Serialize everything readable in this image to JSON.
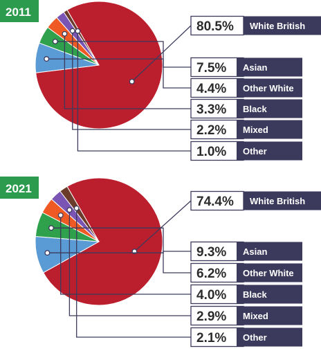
{
  "chart_data": [
    {
      "type": "pie",
      "title": "2011",
      "slices": [
        {
          "label": "White British",
          "value": 80.5,
          "display": "80.5%",
          "color": "#bb1f2e"
        },
        {
          "label": "Asian",
          "value": 7.5,
          "display": "7.5%",
          "color": "#5a9bd5"
        },
        {
          "label": "Other White",
          "value": 4.4,
          "display": "4.4%",
          "color": "#2fa04b"
        },
        {
          "label": "Black",
          "value": 3.3,
          "display": "3.3%",
          "color": "#ef5a24"
        },
        {
          "label": "Mixed",
          "value": 2.2,
          "display": "2.2%",
          "color": "#7a55b3"
        },
        {
          "label": "Other",
          "value": 1.0,
          "display": "1.0%",
          "color": "#6b3b2b"
        }
      ]
    },
    {
      "type": "pie",
      "title": "2021",
      "slices": [
        {
          "label": "White British",
          "value": 74.4,
          "display": "74.4%",
          "color": "#bb1f2e"
        },
        {
          "label": "Asian",
          "value": 9.3,
          "display": "9.3%",
          "color": "#5a9bd5"
        },
        {
          "label": "Other White",
          "value": 6.2,
          "display": "6.2%",
          "color": "#2fa04b"
        },
        {
          "label": "Black",
          "value": 4.0,
          "display": "4.0%",
          "color": "#ef5a24"
        },
        {
          "label": "Mixed",
          "value": 2.9,
          "display": "2.9%",
          "color": "#7a55b3"
        },
        {
          "label": "Other",
          "value": 2.1,
          "display": "2.1%",
          "color": "#6b3b2b"
        }
      ]
    }
  ],
  "colors": {
    "year_badge": "#2d9b4e",
    "label_box": "#3b3a5c",
    "value_box_border": "#3b3a5c",
    "leader_line": "#3b3a5c"
  }
}
